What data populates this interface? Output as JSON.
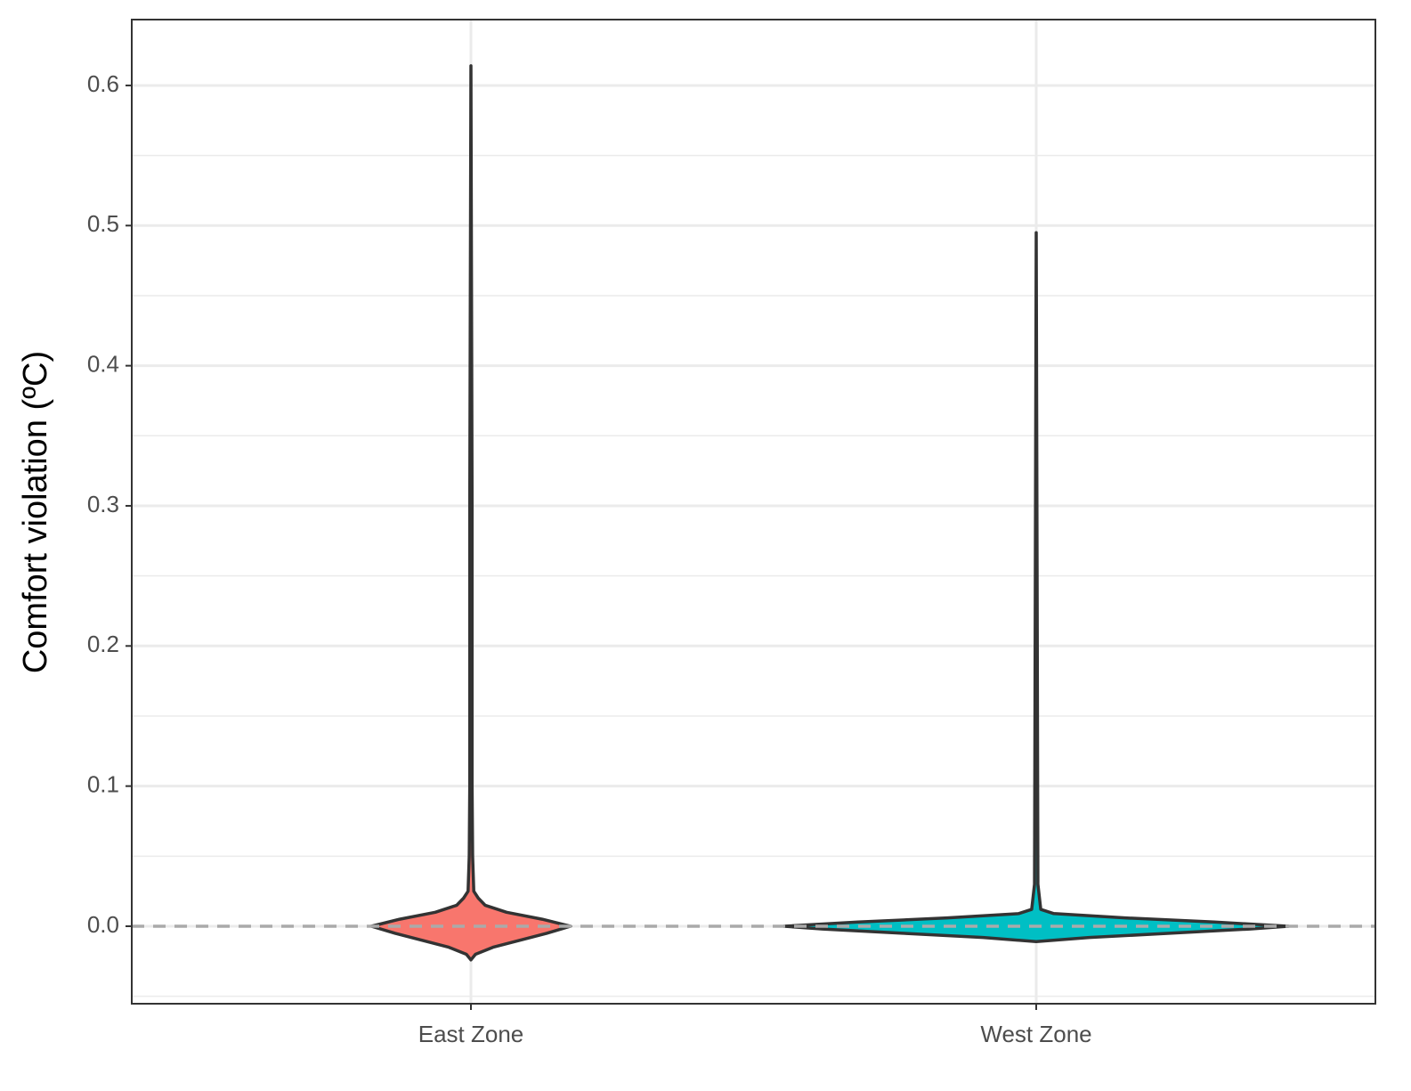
{
  "chart_data": {
    "type": "violin",
    "y_label": "Comfort violation (ºC)",
    "categories": [
      "East Zone",
      "West Zone"
    ],
    "series": [
      {
        "name": "East Zone",
        "color": "#F8766D",
        "y": [
          -0.024,
          -0.02,
          -0.015,
          -0.01,
          -0.005,
          0,
          0.005,
          0.01,
          0.015,
          0.02,
          0.025,
          0.05,
          0.1,
          0.3,
          0.614
        ],
        "half_width": [
          0,
          0.008,
          0.039,
          0.087,
          0.134,
          0.176,
          0.126,
          0.063,
          0.025,
          0.013,
          0.005,
          0.003,
          0.002,
          0.002,
          0
        ]
      },
      {
        "name": "West Zone",
        "color": "#00BFC4",
        "y": [
          -0.011,
          -0.008,
          -0.005,
          -0.002,
          0,
          0.003,
          0.006,
          0.009,
          0.012,
          0.03,
          0.495
        ],
        "half_width": [
          0,
          0.094,
          0.236,
          0.378,
          0.446,
          0.315,
          0.157,
          0.031,
          0.008,
          0.003,
          0
        ]
      }
    ],
    "hline": 0,
    "xlim": [
      0.4,
      2.6
    ],
    "ylim": [
      -0.0553,
      0.647
    ],
    "yticks": [
      {
        "value": 0,
        "label": "0.0"
      },
      0.1,
      0.2,
      0.3,
      0.4,
      0.5,
      0.6
    ],
    "minor_yticks": [
      -0.05,
      0.05,
      0.15,
      0.25,
      0.35,
      0.45,
      0.55
    ],
    "grid": true
  }
}
